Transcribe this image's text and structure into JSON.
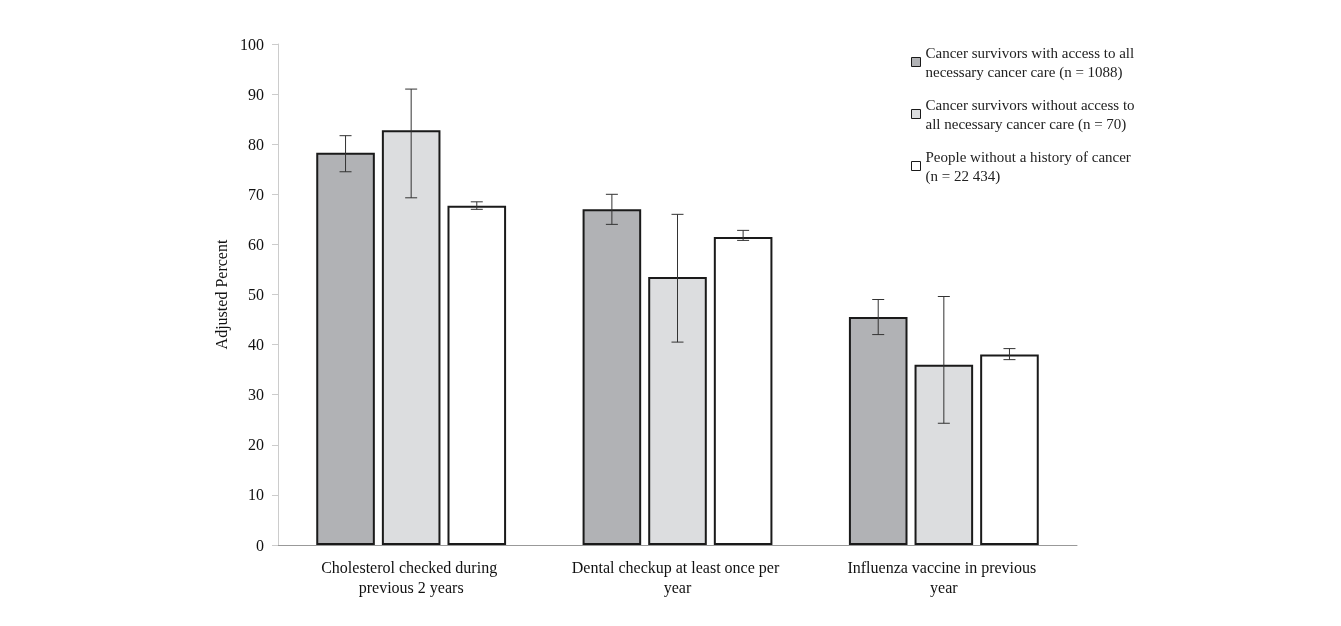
{
  "chart_data": {
    "type": "bar",
    "ylabel": "Adjusted Percent",
    "categories": [
      "Cholesterol checked during previous 2 years",
      "Dental checkup at least once per year",
      "Influenza vaccine in previous year"
    ],
    "series": [
      {
        "name": "Cancer survivors with access to all necessary cancer care (n = 1088)",
        "color": "#b1b2b5",
        "values": [
          78.3,
          67,
          45.5
        ],
        "errors": [
          [
            74.5,
            81.7
          ],
          [
            64,
            70
          ],
          [
            42,
            49
          ]
        ]
      },
      {
        "name": "Cancer survivors without access to all necessary cancer care (n = 70)",
        "color": "#dcdddf",
        "values": [
          82.8,
          53.5,
          36
        ],
        "errors": [
          [
            69.3,
            91
          ],
          [
            40.5,
            66
          ],
          [
            24.3,
            49.6
          ]
        ]
      },
      {
        "name": "People without a history of cancer (n = 22 434)",
        "color": "#ffffff",
        "values": [
          67.7,
          61.5,
          38
        ],
        "errors": [
          [
            67,
            68.5
          ],
          [
            60.8,
            62.8
          ],
          [
            37,
            39.2
          ]
        ]
      }
    ],
    "ylim": [
      0,
      100
    ],
    "yticks": [
      0,
      10,
      20,
      30,
      40,
      50,
      60,
      70,
      80,
      90,
      100
    ],
    "grid": false,
    "legend": "top right"
  }
}
